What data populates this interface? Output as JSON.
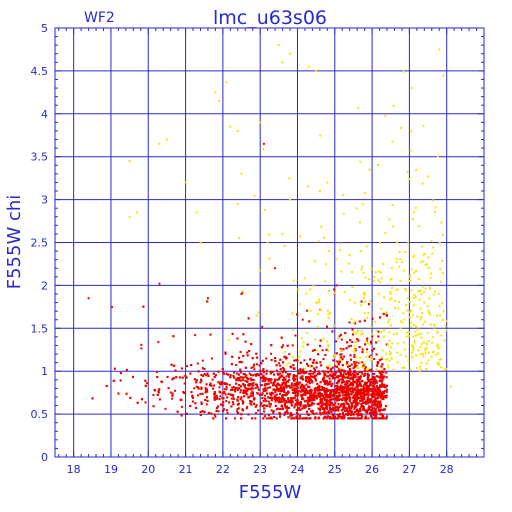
{
  "chart_data": {
    "type": "scatter",
    "title": "lmc_u63s06",
    "chip_label": "WF2",
    "xlabel": "F555W",
    "ylabel": "F555W chi",
    "xlim": [
      17.5,
      29.0
    ],
    "ylim": [
      0,
      5
    ],
    "x_ticks": [
      18,
      19,
      20,
      21,
      22,
      23,
      24,
      25,
      26,
      27,
      28
    ],
    "y_ticks": [
      0,
      0.5,
      1,
      1.5,
      2,
      2.5,
      3,
      3.5,
      4,
      4.5,
      5
    ],
    "grid": true,
    "colors": {
      "axis": "#2a2acc",
      "grid": "#2a2acc",
      "red": "#ee0000",
      "yellow": "#f5e600"
    },
    "series": [
      {
        "color": "red",
        "generator": {
          "count": 3800,
          "x_min": 18.3,
          "x_max": 26.4,
          "x_peak": 24.3,
          "spread": 2.8,
          "y_base": 0.78,
          "y_slope": -0.015,
          "y_sd": 0.17,
          "y_min": 0.45,
          "y_max": 2.0
        },
        "values": [
          {
            "x": 18.4,
            "y": 1.85
          },
          {
            "x": 20.3,
            "y": 2.02
          },
          {
            "x": 21.6,
            "y": 1.85
          },
          {
            "x": 22.5,
            "y": 1.9
          },
          {
            "x": 23.1,
            "y": 3.65
          },
          {
            "x": 23.4,
            "y": 2.2
          },
          {
            "x": 25.0,
            "y": 1.9
          }
        ]
      },
      {
        "color": "yellow",
        "generator": {
          "count": 420,
          "x_min": 19.0,
          "x_max": 28.0,
          "x_peak": 24.5,
          "spread": 2.2,
          "y_min": 0.7,
          "y_max": 4.8
        },
        "values": [
          {
            "x": 23.5,
            "y": 4.8
          },
          {
            "x": 23.6,
            "y": 4.6
          },
          {
            "x": 23.8,
            "y": 4.7
          },
          {
            "x": 24.3,
            "y": 4.55
          },
          {
            "x": 24.5,
            "y": 4.5
          },
          {
            "x": 27.8,
            "y": 4.75
          },
          {
            "x": 21.8,
            "y": 4.25
          },
          {
            "x": 21.9,
            "y": 4.15
          },
          {
            "x": 22.2,
            "y": 3.85
          },
          {
            "x": 22.4,
            "y": 3.8
          },
          {
            "x": 23.0,
            "y": 3.9
          },
          {
            "x": 20.3,
            "y": 3.65
          },
          {
            "x": 20.5,
            "y": 3.7
          },
          {
            "x": 19.5,
            "y": 3.45
          },
          {
            "x": 21.0,
            "y": 3.2
          },
          {
            "x": 24.8,
            "y": 3.2
          },
          {
            "x": 22.5,
            "y": 3.3
          },
          {
            "x": 23.8,
            "y": 3.0
          },
          {
            "x": 24.6,
            "y": 3.1
          },
          {
            "x": 19.7,
            "y": 2.85
          },
          {
            "x": 19.5,
            "y": 2.8
          },
          {
            "x": 21.3,
            "y": 2.85
          },
          {
            "x": 22.4,
            "y": 2.95
          },
          {
            "x": 21.4,
            "y": 2.5
          },
          {
            "x": 23.2,
            "y": 2.5
          },
          {
            "x": 23.6,
            "y": 2.6
          },
          {
            "x": 25.7,
            "y": 2.4
          },
          {
            "x": 26.3,
            "y": 2.25
          },
          {
            "x": 27.4,
            "y": 1.8
          },
          {
            "x": 28.1,
            "y": 0.82
          }
        ]
      }
    ]
  }
}
